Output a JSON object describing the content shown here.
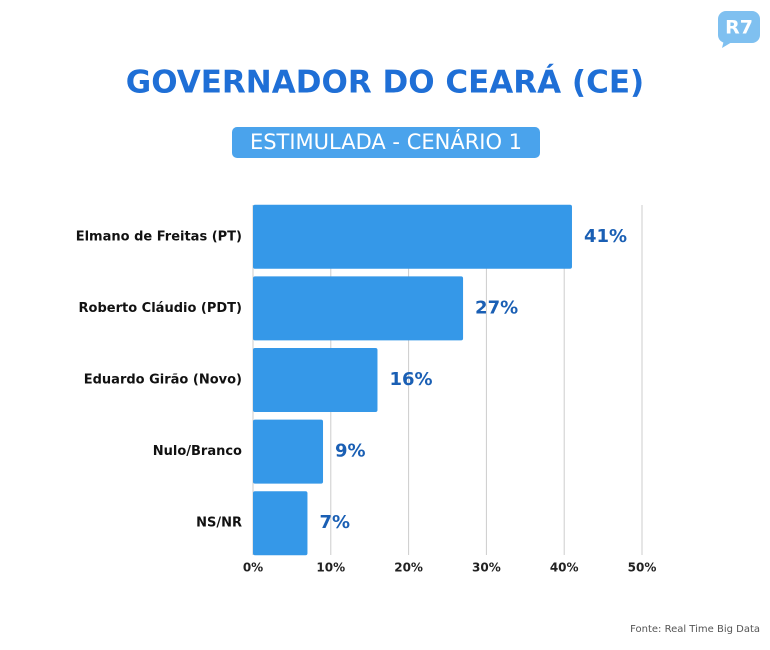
{
  "logo": "R7",
  "chart_data": {
    "type": "barh",
    "title": "GOVERNADOR DO CEARÁ (CE)",
    "subtitle": "ESTIMULADA - CENÁRIO 1",
    "source": "Fonte: Real Time Big Data",
    "categories": [
      "Elmano de Freitas (PT)",
      "Roberto Cláudio (PDT)",
      "Eduardo Girão (Novo)",
      "Nulo/Branco",
      "NS/NR"
    ],
    "values": [
      41,
      27,
      16,
      9,
      7
    ],
    "value_labels": [
      "41%",
      "27%",
      "16%",
      "9%",
      "7%"
    ],
    "color": "#3598e8",
    "xlim": [
      0,
      50
    ],
    "xticks": [
      {
        "value": 0,
        "label": "0%"
      },
      {
        "value": 10,
        "label": "10%"
      },
      {
        "value": 20,
        "label": "20%"
      },
      {
        "value": 30,
        "label": "30%"
      },
      {
        "value": 40,
        "label": "40%"
      },
      {
        "value": 50,
        "label": "50%"
      }
    ],
    "grid": true
  }
}
